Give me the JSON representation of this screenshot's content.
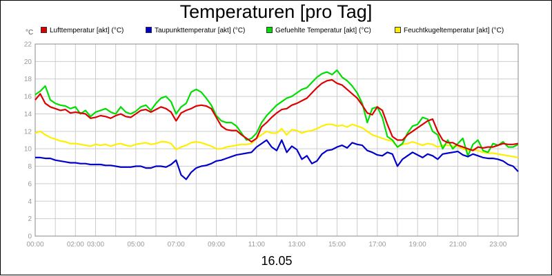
{
  "chart_data": {
    "type": "line",
    "title": "Temperaturen [pro Tag]",
    "y_unit": "°C",
    "date_label": "16.05",
    "ylim": [
      0,
      22
    ],
    "y_ticks": [
      0,
      2,
      4,
      6,
      8,
      10,
      12,
      14,
      16,
      18,
      20,
      22
    ],
    "xlim": [
      0,
      24
    ],
    "x_ticks": [
      {
        "label": "00:00",
        "x": 0
      },
      {
        "label": "02:00",
        "x": 2
      },
      {
        "label": "03:00",
        "x": 3
      },
      {
        "label": "05:00",
        "x": 5
      },
      {
        "label": "07:00",
        "x": 7
      },
      {
        "label": "09:00",
        "x": 9
      },
      {
        "label": "11:00",
        "x": 11
      },
      {
        "label": "13:00",
        "x": 13
      },
      {
        "label": "15:00",
        "x": 15
      },
      {
        "label": "17:00",
        "x": 17
      },
      {
        "label": "19:00",
        "x": 19
      },
      {
        "label": "21:00",
        "x": 21
      },
      {
        "label": "23:00",
        "x": 23
      }
    ],
    "grid": true,
    "legend_position": "top",
    "series": [
      {
        "name": "Lufttemperatur [akt] (°C)",
        "color": "#dd0000",
        "x": [
          0,
          0.25,
          0.5,
          0.75,
          1,
          1.25,
          1.5,
          1.75,
          2,
          2.25,
          2.5,
          2.75,
          3,
          3.25,
          3.5,
          3.75,
          4,
          4.25,
          4.5,
          4.75,
          5,
          5.25,
          5.5,
          5.75,
          6,
          6.25,
          6.5,
          6.75,
          7,
          7.25,
          7.5,
          7.75,
          8,
          8.25,
          8.5,
          8.75,
          9,
          9.25,
          9.5,
          9.75,
          10,
          10.25,
          10.5,
          10.75,
          11,
          11.25,
          11.5,
          11.75,
          12,
          12.25,
          12.5,
          12.75,
          13,
          13.25,
          13.5,
          13.75,
          14,
          14.25,
          14.5,
          14.75,
          15,
          15.25,
          15.5,
          15.75,
          16,
          16.25,
          16.5,
          16.75,
          17,
          17.25,
          17.5,
          17.75,
          18,
          18.25,
          18.5,
          18.75,
          19,
          19.25,
          19.5,
          19.75,
          20,
          20.25,
          20.5,
          20.75,
          21,
          21.25,
          21.5,
          21.75,
          22,
          22.25,
          22.5,
          22.75,
          23,
          23.25,
          23.5,
          23.75,
          24
        ],
        "y": [
          15.6,
          16.3,
          15.2,
          14.8,
          14.6,
          14.4,
          14.5,
          14.1,
          14.2,
          14.1,
          14.0,
          13.5,
          13.6,
          13.8,
          13.7,
          13.5,
          13.8,
          14.0,
          13.7,
          13.6,
          14.0,
          14.4,
          14.5,
          14.2,
          14.5,
          14.8,
          14.6,
          14.2,
          13.2,
          14.1,
          14.4,
          14.6,
          14.9,
          15.0,
          14.9,
          14.6,
          13.6,
          12.6,
          12.2,
          12.1,
          12.1,
          11.6,
          11.2,
          10.8,
          11.2,
          12.5,
          13.0,
          13.6,
          14.1,
          14.5,
          14.6,
          15.0,
          15.2,
          15.5,
          15.8,
          16.4,
          17.0,
          17.5,
          17.8,
          17.9,
          17.5,
          17.3,
          16.8,
          16.3,
          15.8,
          15.0,
          14.1,
          13.9,
          14.8,
          14.4,
          12.8,
          11.4,
          11.0,
          11.0,
          11.6,
          12.0,
          12.4,
          12.8,
          13.2,
          13.4,
          12.0,
          11.0,
          10.7,
          10.7,
          10.4,
          10.2,
          10.0,
          9.8,
          10.2,
          10.1,
          10.2,
          10.2,
          10.4,
          10.6,
          10.5,
          10.5,
          10.6
        ]
      },
      {
        "name": "Taupunkttemperatur [akt] (°C)",
        "color": "#0000cc",
        "x": [
          0,
          0.25,
          0.5,
          0.75,
          1,
          1.25,
          1.5,
          1.75,
          2,
          2.25,
          2.5,
          2.75,
          3,
          3.25,
          3.5,
          3.75,
          4,
          4.25,
          4.5,
          4.75,
          5,
          5.25,
          5.5,
          5.75,
          6,
          6.25,
          6.5,
          6.75,
          7,
          7.25,
          7.5,
          7.75,
          8,
          8.25,
          8.5,
          8.75,
          9,
          9.25,
          9.5,
          9.75,
          10,
          10.25,
          10.5,
          10.75,
          11,
          11.25,
          11.5,
          11.75,
          12,
          12.25,
          12.5,
          12.75,
          13,
          13.25,
          13.5,
          13.75,
          14,
          14.25,
          14.5,
          14.75,
          15,
          15.25,
          15.5,
          15.75,
          16,
          16.25,
          16.5,
          16.75,
          17,
          17.25,
          17.5,
          17.75,
          18,
          18.25,
          18.5,
          18.75,
          19,
          19.25,
          19.5,
          19.75,
          20,
          20.25,
          20.5,
          20.75,
          21,
          21.25,
          21.5,
          21.75,
          22,
          22.25,
          22.5,
          22.75,
          23,
          23.25,
          23.5,
          23.75,
          24
        ],
        "y": [
          9.0,
          9.0,
          8.9,
          8.9,
          8.7,
          8.6,
          8.5,
          8.4,
          8.4,
          8.3,
          8.3,
          8.2,
          8.2,
          8.2,
          8.1,
          8.1,
          8.0,
          7.9,
          7.9,
          7.9,
          8.0,
          8.0,
          7.8,
          7.8,
          8.0,
          8.0,
          7.9,
          8.2,
          8.7,
          7.0,
          6.5,
          7.3,
          7.8,
          8.0,
          8.1,
          8.3,
          8.6,
          8.7,
          8.9,
          9.1,
          9.3,
          9.4,
          9.5,
          9.6,
          10.2,
          10.6,
          11.0,
          10.2,
          9.8,
          11.0,
          9.6,
          10.3,
          9.9,
          8.8,
          9.2,
          8.3,
          8.6,
          9.4,
          9.8,
          9.9,
          10.2,
          10.4,
          10.1,
          10.7,
          10.5,
          10.4,
          9.8,
          9.6,
          9.3,
          9.2,
          9.6,
          9.4,
          8.0,
          8.8,
          9.2,
          9.6,
          9.3,
          9.0,
          9.4,
          9.2,
          8.8,
          9.4,
          9.5,
          9.6,
          9.7,
          9.3,
          9.1,
          9.4,
          9.2,
          9.0,
          8.9,
          8.9,
          8.8,
          8.6,
          8.2,
          8.0,
          7.4
        ]
      },
      {
        "name": "Gefuehlte Temperatur [akt] (°C)",
        "color": "#00dd00",
        "x": [
          0,
          0.25,
          0.5,
          0.75,
          1,
          1.25,
          1.5,
          1.75,
          2,
          2.25,
          2.5,
          2.75,
          3,
          3.25,
          3.5,
          3.75,
          4,
          4.25,
          4.5,
          4.75,
          5,
          5.25,
          5.5,
          5.75,
          6,
          6.25,
          6.5,
          6.75,
          7,
          7.25,
          7.5,
          7.75,
          8,
          8.25,
          8.5,
          8.75,
          9,
          9.25,
          9.5,
          9.75,
          10,
          10.25,
          10.5,
          10.75,
          11,
          11.25,
          11.5,
          11.75,
          12,
          12.25,
          12.5,
          12.75,
          13,
          13.25,
          13.5,
          13.75,
          14,
          14.25,
          14.5,
          14.75,
          15,
          15.25,
          15.5,
          15.75,
          16,
          16.25,
          16.5,
          16.75,
          17,
          17.25,
          17.5,
          17.75,
          18,
          18.25,
          18.5,
          18.75,
          19,
          19.25,
          19.5,
          19.75,
          20,
          20.25,
          20.5,
          20.75,
          21,
          21.25,
          21.5,
          21.75,
          22,
          22.25,
          22.5,
          22.75,
          23,
          23.25,
          23.5,
          23.75,
          24
        ],
        "y": [
          16.2,
          16.6,
          17.2,
          15.6,
          15.2,
          15.0,
          14.9,
          14.6,
          14.8,
          14.0,
          14.4,
          13.7,
          14.2,
          14.4,
          14.6,
          14.2,
          14.0,
          14.8,
          14.2,
          14.0,
          14.3,
          14.8,
          15.0,
          14.4,
          15.2,
          15.8,
          16.0,
          15.4,
          14.0,
          14.8,
          15.2,
          16.5,
          16.8,
          16.5,
          15.8,
          15.0,
          13.8,
          13.2,
          13.0,
          13.0,
          12.6,
          11.8,
          11.0,
          11.2,
          11.8,
          13.0,
          13.8,
          14.4,
          15.0,
          15.4,
          15.8,
          16.0,
          16.4,
          16.8,
          17.0,
          17.6,
          18.2,
          18.6,
          18.8,
          18.5,
          19.0,
          18.2,
          17.8,
          17.2,
          16.4,
          15.2,
          13.0,
          14.6,
          14.8,
          13.6,
          11.4,
          11.0,
          10.2,
          10.6,
          11.8,
          12.6,
          12.8,
          13.6,
          13.4,
          12.0,
          11.6,
          10.0,
          11.0,
          10.0,
          10.6,
          11.2,
          9.2,
          10.5,
          11.0,
          9.8,
          9.6,
          10.6,
          10.4,
          10.8,
          10.2,
          10.2,
          10.5
        ]
      },
      {
        "name": "Feuchtkugeltemperatur [akt] (°C)",
        "color": "#ffee00",
        "x": [
          0,
          0.25,
          0.5,
          0.75,
          1,
          1.25,
          1.5,
          1.75,
          2,
          2.25,
          2.5,
          2.75,
          3,
          3.25,
          3.5,
          3.75,
          4,
          4.25,
          4.5,
          4.75,
          5,
          5.25,
          5.5,
          5.75,
          6,
          6.25,
          6.5,
          6.75,
          7,
          7.25,
          7.5,
          7.75,
          8,
          8.25,
          8.5,
          8.75,
          9,
          9.25,
          9.5,
          9.75,
          10,
          10.25,
          10.5,
          10.75,
          11,
          11.25,
          11.5,
          11.75,
          12,
          12.25,
          12.5,
          12.75,
          13,
          13.25,
          13.5,
          13.75,
          14,
          14.25,
          14.5,
          14.75,
          15,
          15.25,
          15.5,
          15.75,
          16,
          16.25,
          16.5,
          16.75,
          17,
          17.25,
          17.5,
          17.75,
          18,
          18.25,
          18.5,
          18.75,
          19,
          19.25,
          19.5,
          19.75,
          20,
          20.25,
          20.5,
          20.75,
          21,
          21.25,
          21.5,
          21.75,
          22,
          22.25,
          22.5,
          22.75,
          23,
          23.25,
          23.5,
          23.75,
          24
        ],
        "y": [
          11.8,
          12.0,
          11.6,
          11.3,
          11.1,
          10.9,
          10.8,
          10.6,
          10.6,
          10.5,
          10.4,
          10.3,
          10.5,
          10.4,
          10.5,
          10.3,
          10.5,
          10.6,
          10.4,
          10.3,
          10.5,
          10.6,
          10.7,
          10.5,
          10.6,
          10.8,
          10.8,
          10.6,
          9.9,
          10.2,
          10.4,
          10.7,
          10.8,
          10.7,
          10.5,
          10.3,
          10.0,
          10.0,
          10.2,
          10.3,
          10.4,
          10.5,
          10.5,
          10.6,
          11.2,
          11.6,
          12.0,
          11.8,
          11.8,
          12.3,
          11.6,
          12.2,
          12.1,
          11.8,
          12.0,
          12.1,
          12.3,
          12.6,
          12.8,
          12.8,
          12.6,
          12.7,
          12.5,
          12.8,
          12.6,
          12.4,
          12.0,
          11.6,
          11.4,
          11.2,
          11.0,
          10.9,
          10.2,
          10.5,
          10.6,
          10.8,
          10.6,
          10.4,
          10.6,
          10.5,
          10.2,
          10.4,
          10.4,
          10.3,
          10.3,
          10.0,
          9.8,
          9.9,
          9.8,
          9.6,
          9.5,
          9.5,
          9.4,
          9.3,
          9.2,
          9.1,
          9.0
        ]
      }
    ]
  }
}
